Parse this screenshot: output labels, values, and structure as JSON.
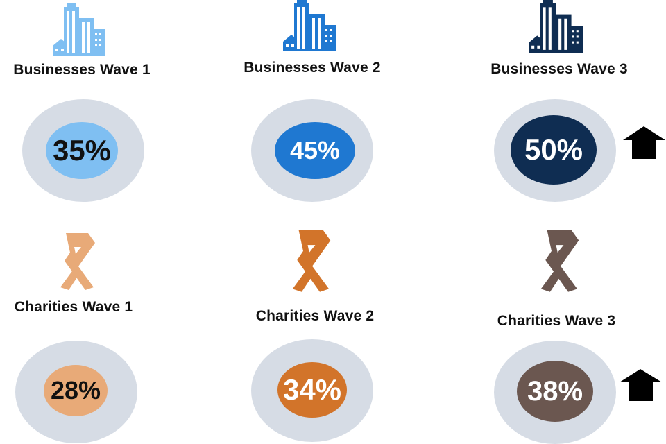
{
  "businesses": [
    {
      "label": "Businesses Wave 1",
      "value": "35%",
      "icon": "building-icon",
      "color": "#7fbff2",
      "text_color": "#111111"
    },
    {
      "label": "Businesses Wave 2",
      "value": "45%",
      "icon": "building-icon",
      "color": "#1f78d1",
      "text_color": "#ffffff"
    },
    {
      "label": "Businesses Wave 3",
      "value": "50%",
      "icon": "building-icon",
      "color": "#0f2d52",
      "text_color": "#ffffff"
    }
  ],
  "charities": [
    {
      "label": "Charities Wave 1",
      "value": "28%",
      "icon": "ribbon-icon",
      "color": "#e8aa78",
      "text_color": "#111111"
    },
    {
      "label": "Charities Wave 2",
      "value": "34%",
      "icon": "ribbon-icon",
      "color": "#d2742a",
      "text_color": "#ffffff"
    },
    {
      "label": "Charities Wave 3",
      "value": "38%",
      "icon": "ribbon-icon",
      "color": "#6b5750",
      "text_color": "#ffffff"
    }
  ],
  "indicators": {
    "businesses_wave_3": "up-arrow-icon",
    "charities_wave_3": "up-arrow-icon"
  },
  "colors": {
    "circle_background": "#d6dce5",
    "arrow": "#000000"
  }
}
